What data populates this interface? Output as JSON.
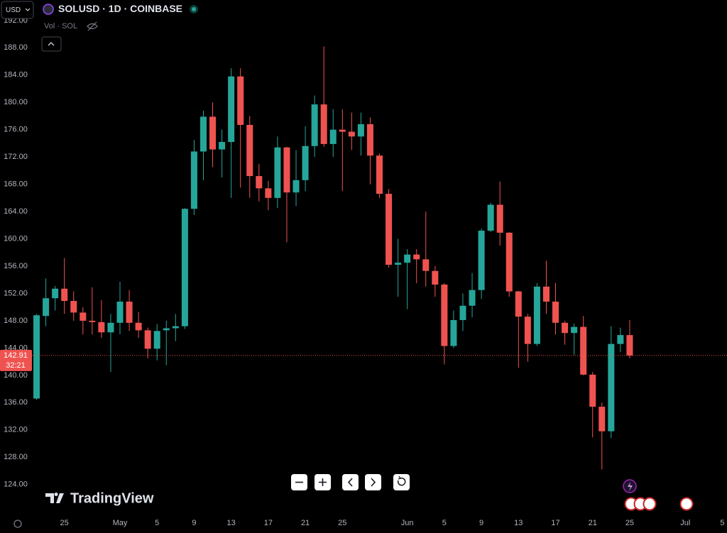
{
  "header": {
    "currency": "USD",
    "symbol": "SOLUSD · 1D · COINBASE",
    "volume_label": "Vol · SOL"
  },
  "branding": "TradingView",
  "chart_data": {
    "type": "candlestick",
    "up_color": "#26a69a",
    "down_color": "#ef5350",
    "ylim": [
      119.6,
      195.0
    ],
    "yticks": [
      {
        "value": 124,
        "label": "124.00"
      },
      {
        "value": 128,
        "label": "128.00"
      },
      {
        "value": 132,
        "label": "132.00"
      },
      {
        "value": 136,
        "label": "136.00"
      },
      {
        "value": 140,
        "label": "140.00"
      },
      {
        "value": 144,
        "label": "144.00"
      },
      {
        "value": 148,
        "label": "148.00"
      },
      {
        "value": 152,
        "label": "152.00"
      },
      {
        "value": 156,
        "label": "156.00"
      },
      {
        "value": 160,
        "label": "160.00"
      },
      {
        "value": 164,
        "label": "164.00"
      },
      {
        "value": 168,
        "label": "168.00"
      },
      {
        "value": 172,
        "label": "172.00"
      },
      {
        "value": 176,
        "label": "176.00"
      },
      {
        "value": 180,
        "label": "180.00"
      },
      {
        "value": 184,
        "label": "184.00"
      },
      {
        "value": 188,
        "label": "188.00"
      },
      {
        "value": 192,
        "label": "192.00"
      }
    ],
    "categories": [
      null,
      null,
      null,
      "25",
      null,
      null,
      null,
      null,
      null,
      "May",
      null,
      null,
      null,
      "5",
      null,
      null,
      null,
      "9",
      null,
      null,
      null,
      "13",
      null,
      null,
      null,
      "17",
      null,
      null,
      null,
      "21",
      null,
      null,
      null,
      "25",
      null,
      null,
      null,
      null,
      null,
      null,
      "Jun",
      null,
      null,
      null,
      "5",
      null,
      null,
      null,
      "9",
      null,
      null,
      null,
      "13",
      null,
      null,
      null,
      "17",
      null,
      null,
      null,
      "21",
      null,
      null,
      null,
      "25",
      null,
      null,
      null,
      null,
      null,
      "Jul",
      null,
      null,
      null,
      "5"
    ],
    "open": [
      136.6,
      148.7,
      151.3,
      152.7,
      150.9,
      149.2,
      148,
      147.8,
      146.3,
      147.7,
      150.8,
      147.7,
      146.6,
      143.9,
      146.6,
      146.9,
      147.2,
      164.4,
      172.8,
      177.9,
      173.1,
      174.2,
      183.8,
      176.7,
      169.2,
      167.4,
      166,
      173.4,
      166.8,
      168.6,
      173.6,
      179.7,
      173.9,
      176,
      175.7,
      175,
      176.8,
      172.2,
      166.6,
      156.2,
      156.5,
      157.7,
      157,
      155.3,
      153.3,
      144.3,
      148.1,
      150.2,
      152.5,
      161.2,
      165,
      160.9,
      152.3,
      148.6,
      144.6,
      153,
      150.8,
      147.7,
      146.2,
      147.1,
      140.1,
      135.4,
      131.8,
      144.6,
      145.9,
      null,
      null,
      null,
      null,
      null,
      null,
      null,
      null,
      null,
      null
    ],
    "high": [
      149,
      154.2,
      153.1,
      157.2,
      152.3,
      150,
      152.9,
      151,
      149,
      153.7,
      152.5,
      149.3,
      147,
      147.5,
      148,
      149,
      164.5,
      174.5,
      178.8,
      180,
      176,
      185,
      185,
      178,
      171,
      168.5,
      175,
      173.5,
      173,
      176.5,
      181,
      188.2,
      179,
      179,
      178.5,
      178.5,
      177.8,
      172.5,
      167.3,
      160,
      158.5,
      158.5,
      164,
      156,
      153.5,
      149.5,
      152,
      155,
      161.5,
      165.3,
      168.4,
      161,
      152.4,
      149,
      153.5,
      156.8,
      153.5,
      148,
      147.6,
      148.7,
      140.5,
      136,
      147.2,
      147,
      148.1,
      null,
      null,
      null,
      null,
      null,
      null,
      null,
      null,
      null,
      null
    ],
    "low": [
      136.4,
      147.2,
      149.5,
      149,
      148,
      146,
      146,
      145.5,
      140.5,
      146,
      146.5,
      145.5,
      142.5,
      142.2,
      141.5,
      145,
      146.8,
      163.5,
      168.6,
      170.5,
      169,
      166,
      167.5,
      166,
      165.5,
      164.2,
      164.5,
      159.5,
      164.8,
      167,
      172,
      173.5,
      172,
      167,
      173,
      172.2,
      168,
      166,
      155.8,
      151.5,
      149.7,
      153.5,
      153,
      151.5,
      141.6,
      144,
      146.5,
      148.5,
      151.2,
      161,
      159,
      151.5,
      141.1,
      142,
      144.3,
      149,
      146,
      144.5,
      143,
      140,
      130.9,
      126.2,
      130.8,
      143.4,
      142.5,
      null,
      null,
      null,
      null,
      null,
      null,
      null,
      null,
      null,
      null
    ],
    "close": [
      148.8,
      151.3,
      152.7,
      150.9,
      149.2,
      148,
      147.8,
      146.3,
      147.7,
      150.8,
      147.7,
      146.6,
      143.9,
      146.5,
      146.9,
      147.2,
      164.4,
      172.8,
      177.9,
      173.1,
      174.2,
      183.8,
      176.7,
      169.2,
      167.4,
      166,
      173.4,
      166.8,
      168.6,
      173.6,
      179.7,
      173.9,
      176,
      175.7,
      175,
      176.8,
      172.2,
      166.6,
      156.2,
      156.5,
      157.7,
      157,
      155.3,
      153.3,
      144.3,
      148.1,
      150.2,
      152.5,
      161.2,
      165,
      160.9,
      152.3,
      148.6,
      144.6,
      153,
      150.8,
      147.7,
      146.2,
      147.1,
      140.1,
      135.4,
      131.8,
      144.6,
      145.9,
      142.91,
      null,
      null,
      null,
      null,
      null,
      null,
      null,
      null,
      null,
      null
    ],
    "last_price": 142.91,
    "countdown": "32:21"
  }
}
